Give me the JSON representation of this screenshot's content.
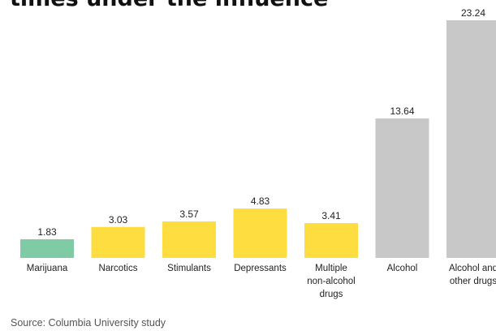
{
  "title": "times under the influence",
  "source": "Source: Columbia University study",
  "chart_data": {
    "type": "bar",
    "categories": [
      "Marijuana",
      "Narcotics",
      "Stimulants",
      "Depressants",
      "Multiple non-alcohol drugs",
      "Alcohol",
      "Alcohol and other drugs"
    ],
    "category_lines": [
      [
        "Marijuana"
      ],
      [
        "Narcotics"
      ],
      [
        "Stimulants"
      ],
      [
        "Depressants"
      ],
      [
        "Multiple",
        "non-alcohol",
        "drugs"
      ],
      [
        "Alcohol"
      ],
      [
        "Alcohol and",
        "other drugs"
      ]
    ],
    "values": [
      1.83,
      3.03,
      3.57,
      4.83,
      3.41,
      13.64,
      23.24
    ],
    "value_labels": [
      "1.83",
      "3.03",
      "3.57",
      "4.83",
      "3.41",
      "13.64",
      "23.24"
    ],
    "colors": [
      "#7fcba6",
      "#fddd40",
      "#fddd40",
      "#fddd40",
      "#fddd40",
      "#c8c8c8",
      "#c8c8c8"
    ],
    "ylim": [
      0,
      23.24
    ],
    "grid": false,
    "axes_visible": false,
    "xlabel": "",
    "ylabel": ""
  }
}
